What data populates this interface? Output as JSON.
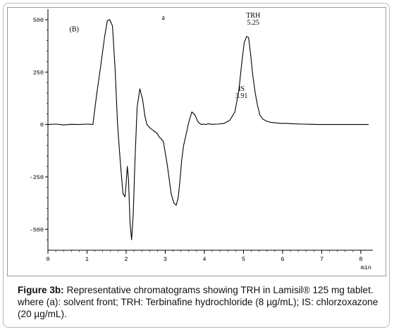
{
  "figure": {
    "caption_label": "Figure 3b:",
    "caption_text": " Representative chromatograms showing TRH in Lamisil® 125 mg tablet. where (a): solvent front; TRH: Terbinafine hydrochloride (8 µg/mL); IS: chlorzoxazone (20 µg/mL)."
  },
  "chart_data": {
    "type": "line",
    "title": "",
    "panel_label": "(B)",
    "xlabel": "min",
    "ylabel": "",
    "xlim": [
      0,
      8.2
    ],
    "ylim": [
      -600,
      530
    ],
    "x_ticks": [
      "0",
      "1",
      "2",
      "3",
      "4",
      "5",
      "6",
      "7",
      "8"
    ],
    "y_ticks": [
      "500",
      "250",
      "0",
      "-250",
      "-500"
    ],
    "y_tick_values": [
      500,
      250,
      0,
      -250,
      -500
    ],
    "annotations": [
      {
        "text": "a",
        "x": 2.95,
        "y": 500
      },
      {
        "lines": [
          "TRH",
          "5.25"
        ],
        "x": 5.25,
        "y": 510
      },
      {
        "lines": [
          "IS",
          "3.91"
        ],
        "x": 4.95,
        "y": 160
      }
    ],
    "series": [
      {
        "x": [
          0,
          0.2,
          0.4,
          0.6,
          0.8,
          1.0,
          1.15,
          1.25,
          1.35,
          1.45,
          1.52,
          1.58,
          1.65,
          1.72,
          1.78,
          1.85,
          1.92,
          1.97,
          2.0,
          2.03,
          2.06,
          2.1,
          2.14,
          2.18,
          2.22,
          2.28,
          2.35,
          2.42,
          2.48,
          2.53,
          2.58,
          2.63,
          2.7,
          2.78,
          2.85,
          2.95,
          3.05,
          3.15,
          3.22,
          3.28,
          3.33,
          3.38,
          3.42,
          3.47,
          3.53,
          3.6,
          3.68,
          3.76,
          3.83,
          3.88,
          3.92,
          3.97,
          4.03,
          4.1,
          4.2,
          4.35,
          4.5,
          4.65,
          4.78,
          4.88,
          4.96,
          5.02,
          5.08,
          5.13,
          5.18,
          5.24,
          5.3,
          5.36,
          5.42,
          5.5,
          5.6,
          5.7,
          5.8,
          5.95,
          6.1,
          6.3,
          6.5,
          6.7,
          6.9,
          7.1,
          7.3,
          7.5,
          7.7,
          7.9,
          8.2
        ],
        "y": [
          0,
          2,
          -2,
          1,
          0,
          2,
          0,
          150,
          280,
          420,
          495,
          500,
          470,
          260,
          0,
          -180,
          -330,
          -345,
          -280,
          -200,
          -260,
          -470,
          -550,
          -430,
          -200,
          80,
          170,
          120,
          40,
          0,
          -10,
          -20,
          -30,
          -40,
          -60,
          -80,
          -190,
          -330,
          -375,
          -385,
          -350,
          -260,
          -170,
          -100,
          -50,
          10,
          60,
          45,
          15,
          5,
          0,
          2,
          0,
          3,
          1,
          2,
          5,
          20,
          60,
          160,
          300,
          390,
          420,
          415,
          340,
          230,
          150,
          90,
          45,
          25,
          15,
          10,
          8,
          5,
          5,
          3,
          2,
          1,
          0,
          0,
          0,
          0,
          0,
          0,
          0
        ]
      }
    ]
  }
}
